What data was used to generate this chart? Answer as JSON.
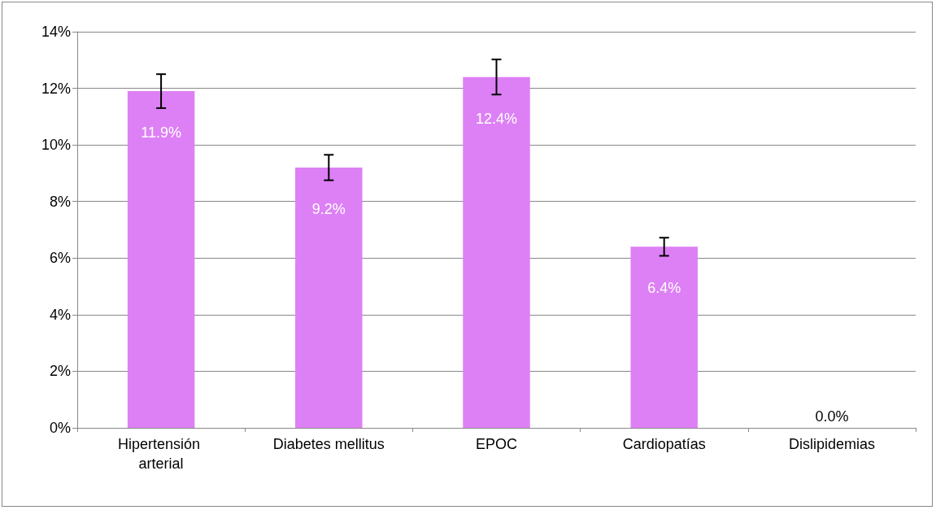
{
  "chart_data": {
    "type": "bar",
    "categories": [
      "Hipertensión arterial",
      "Diabetes mellitus",
      "EPOC",
      "Cardiopatías",
      "Dislipidemias"
    ],
    "values": [
      11.9,
      9.2,
      12.4,
      6.4,
      0
    ],
    "errors": [
      0.6,
      0.45,
      0.62,
      0.32,
      null
    ],
    "value_labels": [
      "11.9%",
      "9.2%",
      "12.4%",
      "6.4%",
      "0.0%"
    ],
    "color": "#dd80f5",
    "ylim": [
      0,
      14
    ],
    "yticks": [
      {
        "value": 0,
        "label": "0%"
      },
      {
        "value": 2,
        "label": "2%"
      },
      {
        "value": 4,
        "label": "4%"
      },
      {
        "value": 6,
        "label": "6%"
      },
      {
        "value": 8,
        "label": "8%"
      },
      {
        "value": 10,
        "label": "10%"
      },
      {
        "value": 12,
        "label": "12%"
      },
      {
        "value": 14,
        "label": "14%"
      }
    ],
    "grid": "y"
  }
}
